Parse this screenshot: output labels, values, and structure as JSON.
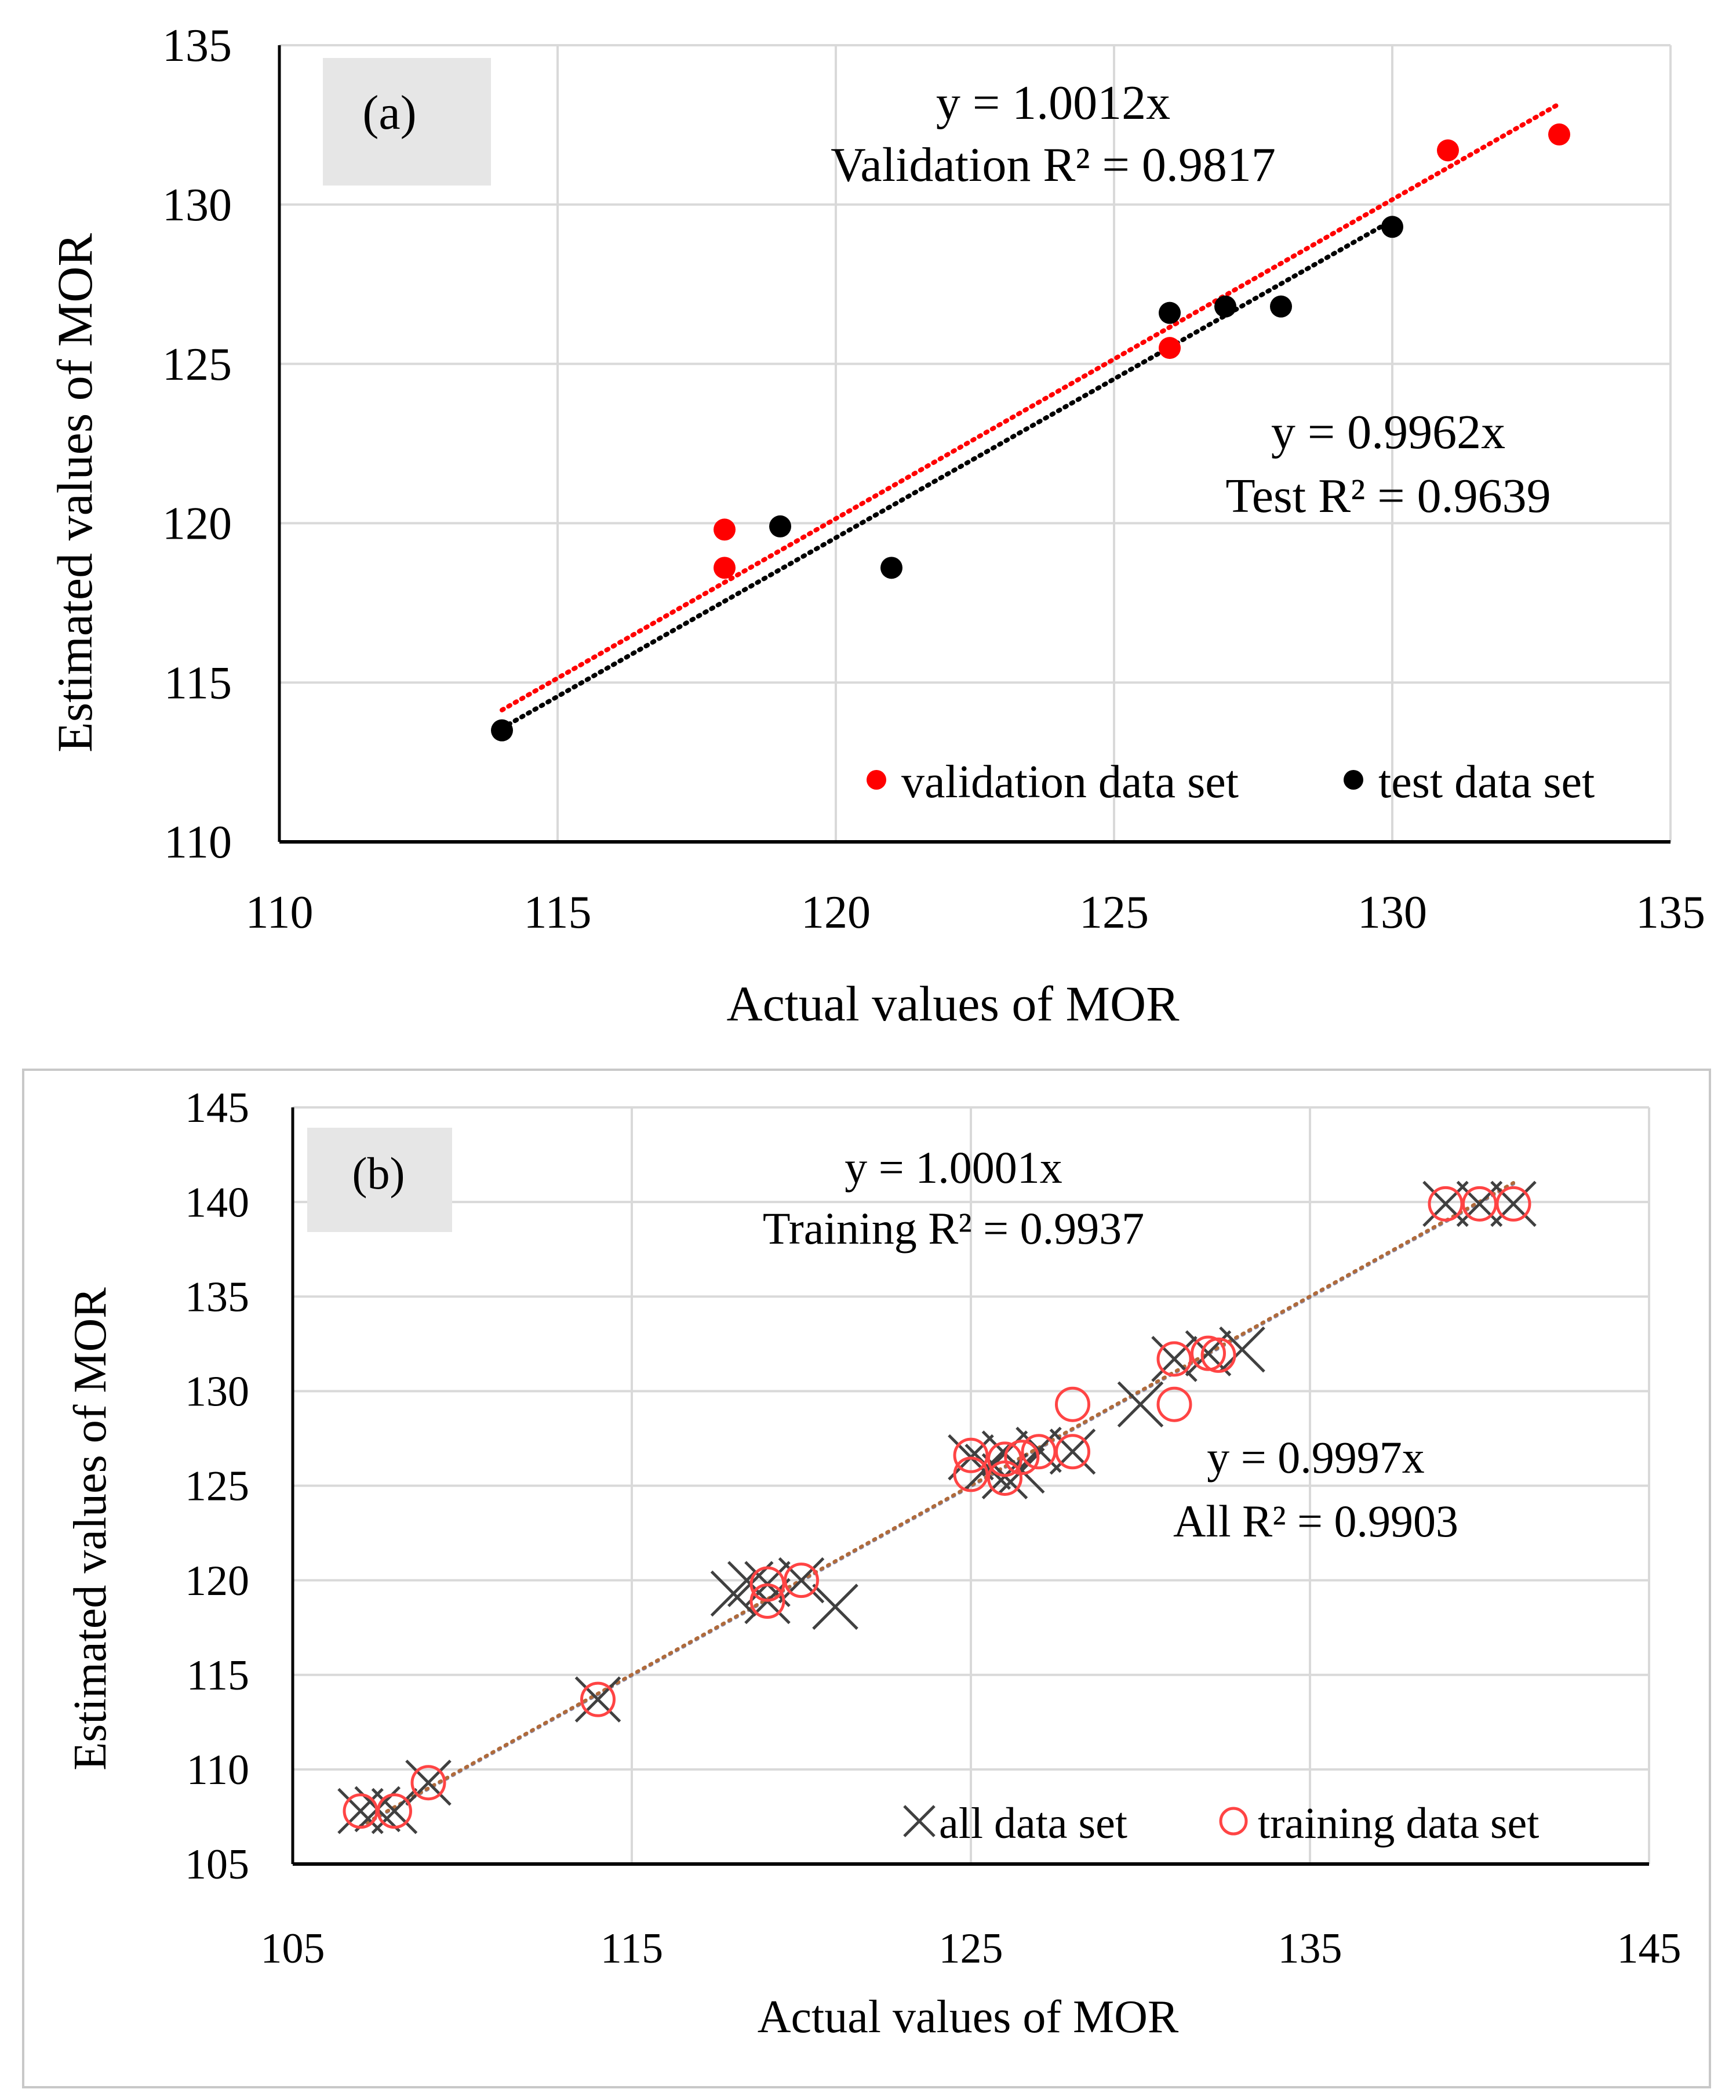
{
  "chart_data": [
    {
      "id": "a",
      "type": "scatter",
      "panel_label": "(a)",
      "xlabel": "Actual values of MOR",
      "ylabel": "Estimated values of MOR",
      "xlim": [
        110,
        135
      ],
      "ylim": [
        110,
        135
      ],
      "x_ticks": [
        "110",
        "115",
        "120",
        "125",
        "130",
        "135"
      ],
      "y_ticks": [
        "110",
        "115",
        "120",
        "125",
        "130",
        "135"
      ],
      "grid": true,
      "legend_position": "bottom-right",
      "legend": [
        "validation data set",
        "test data set"
      ],
      "series": [
        {
          "name": "validation data set",
          "marker": "dot",
          "color": "#ff0000",
          "points": [
            [
              118,
              119.8
            ],
            [
              118,
              118.6
            ],
            [
              126,
              125.5
            ],
            [
              131,
              131.7
            ],
            [
              133,
              132.2
            ]
          ],
          "trendline": {
            "slope": 1.0012,
            "x_range": [
              114,
              133
            ],
            "equation": "y = 1.0012x",
            "r2_text": "Validation R² = 0.9817"
          }
        },
        {
          "name": "test data set",
          "marker": "dot",
          "color": "#000000",
          "points": [
            [
              114,
              113.5
            ],
            [
              119,
              119.9
            ],
            [
              121,
              118.6
            ],
            [
              126,
              126.6
            ],
            [
              127,
              126.8
            ],
            [
              128,
              126.8
            ],
            [
              130,
              129.3
            ]
          ],
          "trendline": {
            "slope": 0.9962,
            "x_range": [
              114,
              130
            ],
            "equation": "y = 0.9962x",
            "r2_text": "Test R² = 0.9639"
          }
        }
      ]
    },
    {
      "id": "b",
      "type": "scatter",
      "panel_label": "(b)",
      "xlabel": "Actual  values  of MOR",
      "ylabel": "Estimated  values  of MOR",
      "xlim": [
        105,
        145
      ],
      "ylim": [
        105,
        145
      ],
      "x_ticks": [
        "105",
        "115",
        "125",
        "135",
        "145"
      ],
      "y_ticks": [
        "105",
        "110",
        "115",
        "120",
        "125",
        "130",
        "135",
        "140",
        "145"
      ],
      "grid": true,
      "legend_position": "bottom-right",
      "legend": [
        "all data set",
        "training data set"
      ],
      "series": [
        {
          "name": "all data set",
          "marker": "x",
          "color": "#404040",
          "points": [
            [
              107,
              107.8
            ],
            [
              107.5,
              107.9
            ],
            [
              108,
              107.8
            ],
            [
              109,
              109.3
            ],
            [
              114,
              113.7
            ],
            [
              118,
              119.3
            ],
            [
              118.5,
              119.8
            ],
            [
              119,
              119.8
            ],
            [
              119,
              118.9
            ],
            [
              120,
              120
            ],
            [
              121,
              118.6
            ],
            [
              125,
              126.5
            ],
            [
              125.5,
              126
            ],
            [
              126,
              126.7
            ],
            [
              126,
              125.5
            ],
            [
              126.5,
              125.8
            ],
            [
              127,
              126.9
            ],
            [
              128,
              126.8
            ],
            [
              130,
              129.3
            ],
            [
              131,
              131.7
            ],
            [
              132,
              132
            ],
            [
              133,
              132.2
            ],
            [
              139,
              139.9
            ],
            [
              140,
              139.9
            ],
            [
              141,
              139.9
            ]
          ],
          "trendline": {
            "slope": 0.9997,
            "x_range": [
              107,
              141
            ],
            "equation": "y = 0.9997x",
            "r2_text": "All  R² = 0.9903"
          }
        },
        {
          "name": "training data set",
          "marker": "o",
          "color": "#ff4444",
          "points": [
            [
              107,
              107.8
            ],
            [
              108,
              107.8
            ],
            [
              109,
              109.3
            ],
            [
              114,
              113.7
            ],
            [
              119,
              119.8
            ],
            [
              119,
              118.9
            ],
            [
              120,
              120
            ],
            [
              125,
              126.6
            ],
            [
              125,
              125.6
            ],
            [
              126,
              126.4
            ],
            [
              126,
              125.4
            ],
            [
              126.5,
              126.5
            ],
            [
              127,
              126.8
            ],
            [
              128,
              126.8
            ],
            [
              128,
              129.3
            ],
            [
              131,
              131.7
            ],
            [
              131,
              129.3
            ],
            [
              132,
              132
            ],
            [
              132.3,
              131.9
            ],
            [
              139,
              139.9
            ],
            [
              140,
              139.9
            ],
            [
              141,
              139.9
            ]
          ],
          "trendline": {
            "slope": 1.0001,
            "x_range": [
              107,
              141
            ],
            "equation": "y = 1.0001x",
            "r2_text": "Training  R² = 0.9937"
          }
        }
      ]
    }
  ]
}
